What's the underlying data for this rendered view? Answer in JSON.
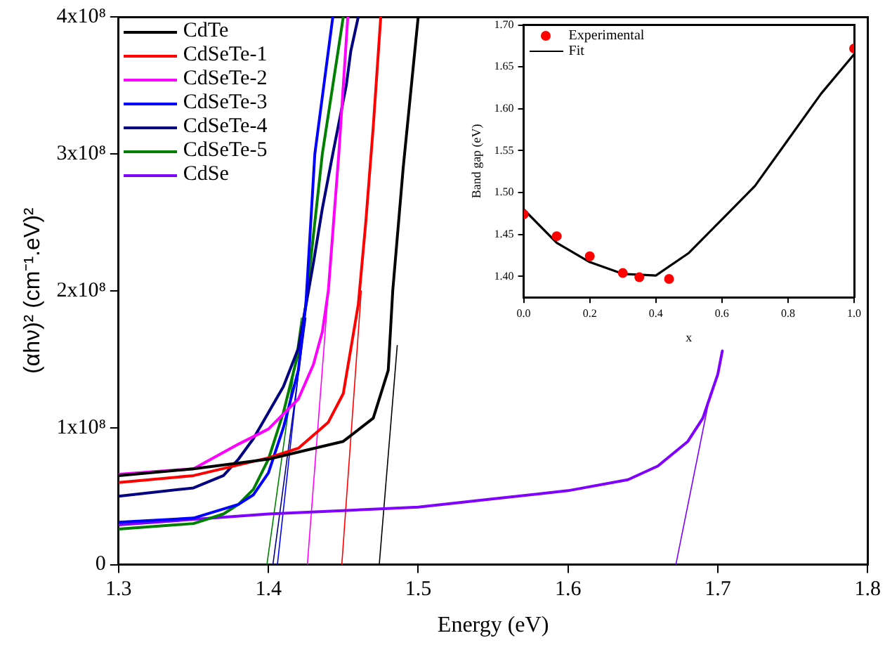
{
  "chart_data": [
    {
      "type": "line",
      "xlabel": "Energy (eV)",
      "ylabel": "(αhν)² (cm⁻¹.eV)²",
      "xlim": [
        1.3,
        1.8
      ],
      "xticks": [
        1.3,
        1.4,
        1.5,
        1.6,
        1.7,
        1.8
      ],
      "ylim": [
        0,
        400000000
      ],
      "yticks": [
        0,
        {
          "value": 100000000,
          "label": "1x10⁸"
        },
        {
          "value": 200000000,
          "label": "2x10⁸"
        },
        {
          "value": 300000000,
          "label": "3x10⁸"
        },
        {
          "value": 400000000,
          "label": "4x10⁸"
        }
      ],
      "grid": false,
      "legend": "top left",
      "marker": "none",
      "line_style": "solid",
      "series": [
        {
          "name": "CdTe",
          "color": "#000000",
          "x": [
            1.3,
            1.35,
            1.4,
            1.45,
            1.47,
            1.48,
            1.483,
            1.49,
            1.5
          ],
          "values": [
            65000000,
            70000000,
            77000000,
            90000000,
            107000000,
            142000000,
            200000000,
            290000000,
            400000000
          ]
        },
        {
          "name": "CdSeTe-1",
          "color": "#ff0000",
          "x": [
            1.3,
            1.35,
            1.4,
            1.42,
            1.44,
            1.45,
            1.46,
            1.465,
            1.47,
            1.475
          ],
          "values": [
            60000000,
            65000000,
            78000000,
            85000000,
            104000000,
            125000000,
            190000000,
            250000000,
            320000000,
            400000000
          ]
        },
        {
          "name": "CdSeTe-2",
          "color": "#ff00ff",
          "x": [
            1.3,
            1.35,
            1.38,
            1.4,
            1.42,
            1.43,
            1.436,
            1.44,
            1.447,
            1.453
          ],
          "values": [
            66000000,
            70000000,
            88000000,
            99000000,
            121000000,
            146000000,
            170000000,
            200000000,
            300000000,
            400000000
          ]
        },
        {
          "name": "CdSeTe-3",
          "color": "#0000ff",
          "x": [
            1.3,
            1.35,
            1.38,
            1.39,
            1.4,
            1.41,
            1.42,
            1.425,
            1.431,
            1.437,
            1.443
          ],
          "values": [
            31000000,
            34000000,
            44000000,
            51000000,
            67000000,
            100000000,
            142000000,
            190000000,
            300000000,
            350000000,
            400000000
          ]
        },
        {
          "name": "CdSeTe-4",
          "color": "#000080",
          "x": [
            1.3,
            1.35,
            1.37,
            1.38,
            1.39,
            1.4,
            1.41,
            1.42,
            1.43,
            1.436,
            1.443,
            1.452,
            1.455,
            1.46
          ],
          "values": [
            50000000,
            56000000,
            65000000,
            77000000,
            92000000,
            111000000,
            130000000,
            158000000,
            220000000,
            260000000,
            300000000,
            350000000,
            375000000,
            400000000
          ]
        },
        {
          "name": "CdSeTe-5",
          "color": "#008000",
          "x": [
            1.3,
            1.35,
            1.37,
            1.38,
            1.39,
            1.4,
            1.41,
            1.42,
            1.425,
            1.436,
            1.45
          ],
          "values": [
            26000000,
            30000000,
            37000000,
            44000000,
            55000000,
            77000000,
            111000000,
            155000000,
            190000000,
            300000000,
            400000000
          ]
        },
        {
          "name": "CdSe",
          "color": "#8000ff",
          "x": [
            1.3,
            1.4,
            1.5,
            1.55,
            1.6,
            1.64,
            1.66,
            1.68,
            1.69,
            1.7,
            1.703
          ],
          "values": [
            29000000,
            37000000,
            42000000,
            48000000,
            54000000,
            62000000,
            72000000,
            90000000,
            107000000,
            139000000,
            156000000
          ]
        },
        {
          "color": "#000000",
          "x": [
            1.474,
            1.486
          ],
          "values": [
            0,
            160000000
          ]
        },
        {
          "color": "#ff0000",
          "x": [
            1.449,
            1.462
          ],
          "values": [
            0,
            200000000
          ]
        },
        {
          "color": "#ff00ff",
          "x": [
            1.426,
            1.44
          ],
          "values": [
            0,
            200000000
          ]
        },
        {
          "color": "#0000ff",
          "x": [
            1.406,
            1.424
          ],
          "values": [
            0,
            180000000
          ]
        },
        {
          "color": "#000080",
          "x": [
            1.403,
            1.425
          ],
          "values": [
            0,
            180000000
          ]
        },
        {
          "color": "#008000",
          "x": [
            1.399,
            1.422
          ],
          "values": [
            0,
            180000000
          ]
        },
        {
          "color": "#8000ff",
          "x": [
            1.672,
            1.695
          ],
          "values": [
            0,
            125000000
          ]
        }
      ]
    },
    {
      "type": "scatter",
      "xlabel": "x",
      "ylabel": "Band gap (eV)",
      "xlim": [
        0,
        1
      ],
      "xticks": [
        {
          "value": 0,
          "label": "0.0"
        },
        {
          "value": 0.2,
          "label": "0.2"
        },
        {
          "value": 0.4,
          "label": "0.4"
        },
        {
          "value": 0.6,
          "label": "0.6"
        },
        {
          "value": 0.8,
          "label": "0.8"
        },
        {
          "value": 1,
          "label": "1.0"
        }
      ],
      "ylim": [
        1.375,
        1.7
      ],
      "yticks": [
        {
          "value": 1.4,
          "label": "1.40"
        },
        {
          "value": 1.45,
          "label": "1.45"
        },
        {
          "value": 1.5,
          "label": "1.50"
        },
        {
          "value": 1.55,
          "label": "1.55"
        },
        {
          "value": 1.6,
          "label": "1.60"
        },
        {
          "value": 1.65,
          "label": "1.65"
        },
        {
          "value": 1.7,
          "label": "1.70"
        }
      ],
      "grid": false,
      "legend": "top left",
      "marker": "circle",
      "series": [
        {
          "name": "Experimental",
          "color": "#ff0000",
          "x": [
            0,
            0.1,
            0.2,
            0.3,
            0.35,
            0.44,
            1.0
          ],
          "values": [
            1.474,
            1.448,
            1.424,
            1.404,
            1.399,
            1.397,
            1.672
          ]
        },
        {
          "name": "Fit",
          "type": "line",
          "marker": "none",
          "line_style": "solid",
          "color": "#000000",
          "x": [
            0,
            0.1,
            0.2,
            0.3,
            0.4,
            0.5,
            0.6,
            0.7,
            0.8,
            0.9,
            1.0
          ],
          "values": [
            1.48,
            1.44,
            1.417,
            1.403,
            1.401,
            1.428,
            1.468,
            1.508,
            1.563,
            1.618,
            1.665
          ]
        }
      ]
    }
  ]
}
